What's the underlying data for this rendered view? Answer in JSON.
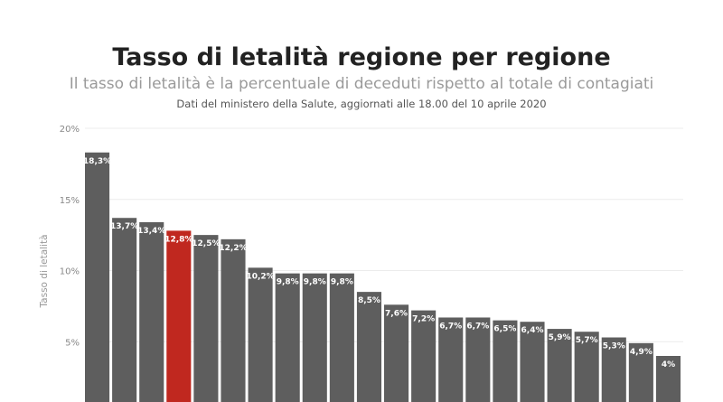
{
  "header": {
    "title": "Tasso di letalità regione per regione",
    "subtitle": "Il tasso di letalità è la percentuale di deceduti rispetto al totale di contagiati",
    "note": "Dati del ministero della Salute, aggiornati alle 18.00 del 10 aprile 2020"
  },
  "chart_data": {
    "type": "bar",
    "title": "Tasso di letalità regione per regione",
    "ylabel": "Tasso di letalità",
    "ylim": [
      0,
      20
    ],
    "yticks": [
      5,
      10,
      15,
      20
    ],
    "ytick_labels": [
      "5%",
      "10%",
      "15%",
      "20%"
    ],
    "grid": true,
    "values": [
      18.3,
      13.7,
      13.4,
      12.8,
      12.5,
      12.2,
      10.2,
      9.8,
      9.8,
      9.8,
      8.5,
      7.6,
      7.2,
      6.7,
      6.7,
      6.5,
      6.4,
      5.9,
      5.7,
      5.3,
      4.9,
      4
    ],
    "labels": [
      "18,3%",
      "13,7%",
      "13,4%",
      "12,8%",
      "12,5%",
      "12,2%",
      "10,2%",
      "9,8%",
      "9,8%",
      "9,8%",
      "8,5%",
      "7,6%",
      "7,2%",
      "6,7%",
      "6,7%",
      "6,5%",
      "6,4%",
      "5,9%",
      "5,7%",
      "5,3%",
      "4,9%",
      "4%"
    ],
    "highlight_index": 3,
    "colors": {
      "bar": "#5e5e5e",
      "highlight": "#c0281f",
      "grid": "#ececec"
    }
  }
}
